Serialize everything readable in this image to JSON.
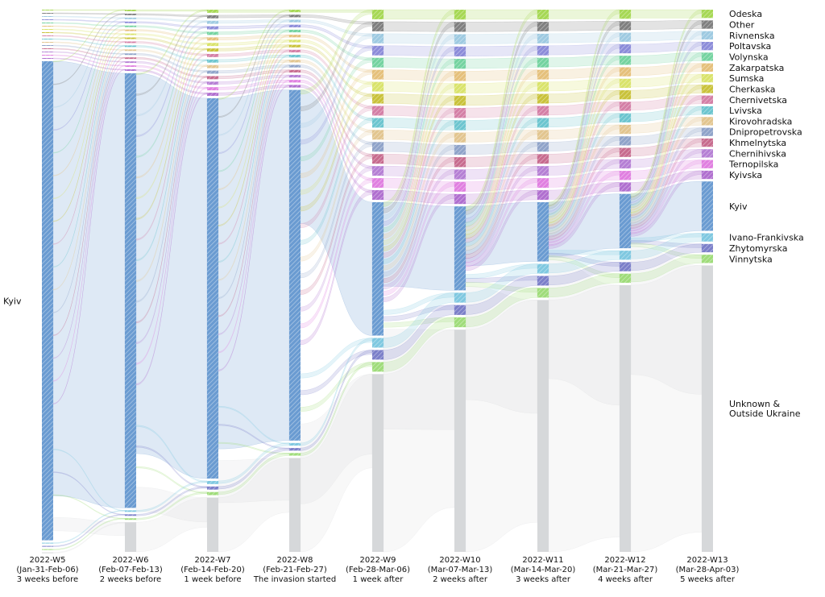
{
  "chart_data": {
    "type": "sankey",
    "title": "",
    "source_label": "Kyiv",
    "weeks": [
      {
        "week": "2022-W5",
        "range": "(Jan-31-Feb-06)",
        "note": "3 weeks before"
      },
      {
        "week": "2022-W6",
        "range": "(Feb-07-Feb-13)",
        "note": "2 weeks before"
      },
      {
        "week": "2022-W7",
        "range": "(Feb-14-Feb-20)",
        "note": "1 week before"
      },
      {
        "week": "2022-W8",
        "range": "(Feb-21-Feb-27)",
        "note": "The invasion started"
      },
      {
        "week": "2022-W9",
        "range": "(Feb-28-Mar-06)",
        "note": "1 week after"
      },
      {
        "week": "2022-W10",
        "range": "(Mar-07-Mar-13)",
        "note": "2 weeks after"
      },
      {
        "week": "2022-W11",
        "range": "(Mar-14-Mar-20)",
        "note": "3 weeks after"
      },
      {
        "week": "2022-W12",
        "range": "(Mar-21-Mar-27)",
        "note": "4 weeks after"
      },
      {
        "week": "2022-W13",
        "range": "(Mar-28-Apr-03)",
        "note": "5 weeks after"
      }
    ],
    "regions": [
      {
        "name": "Odeska",
        "color": "#a6d854"
      },
      {
        "name": "Other",
        "color": "#7f7f7f"
      },
      {
        "name": "Rivnenska",
        "color": "#9ecae1"
      },
      {
        "name": "Poltavska",
        "color": "#8c8cd9"
      },
      {
        "name": "Volynska",
        "color": "#74d3a0"
      },
      {
        "name": "Zakarpatska",
        "color": "#e5c07b"
      },
      {
        "name": "Sumska",
        "color": "#d9e36b"
      },
      {
        "name": "Cherkaska",
        "color": "#c9c23a"
      },
      {
        "name": "Chernivetska",
        "color": "#d47fa6"
      },
      {
        "name": "Lvivska",
        "color": "#6cc5cf"
      },
      {
        "name": "Kirovohradska",
        "color": "#e2c58f"
      },
      {
        "name": "Dnipropetrovska",
        "color": "#8fa3c9"
      },
      {
        "name": "Khmelnytska",
        "color": "#c76b8e"
      },
      {
        "name": "Chernihivska",
        "color": "#b57fd4"
      },
      {
        "name": "Ternopilska",
        "color": "#e07fe0"
      },
      {
        "name": "Kyivska",
        "color": "#b06fcf"
      },
      {
        "name": "Ivano-Frankivska",
        "color": "#7fc8e0"
      },
      {
        "name": "Kyiv",
        "color": "#6a9bd1"
      },
      {
        "name": "Zhytomyrska",
        "color": "#7b7fc9"
      },
      {
        "name": "Vinnytska",
        "color": "#9fdc7a"
      },
      {
        "name": "Unknown &\nOutside Ukraine",
        "color": "#d6d8da"
      }
    ],
    "kyiv_share": [
      0.97,
      0.88,
      0.77,
      0.71,
      0.27,
      0.17,
      0.12,
      0.11,
      0.1
    ],
    "unknown_share": [
      0.0,
      0.06,
      0.11,
      0.19,
      0.36,
      0.45,
      0.51,
      0.54,
      0.58
    ],
    "legend": "right"
  }
}
